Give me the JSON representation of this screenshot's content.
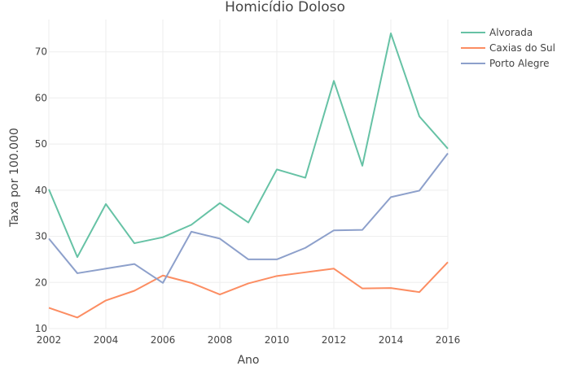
{
  "chart_data": {
    "type": "line",
    "title": "Homicídio Doloso",
    "xlabel": "Ano",
    "ylabel": "Taxa por 100.000",
    "xlim": [
      2002,
      2016
    ],
    "ylim": [
      10,
      77
    ],
    "x_ticks": [
      2002,
      2004,
      2006,
      2008,
      2010,
      2012,
      2014,
      2016
    ],
    "y_ticks": [
      10,
      20,
      30,
      40,
      50,
      60,
      70
    ],
    "grid": true,
    "legend_position": "top-right",
    "x": [
      2002,
      2003,
      2004,
      2005,
      2006,
      2007,
      2008,
      2009,
      2010,
      2011,
      2012,
      2013,
      2014,
      2015,
      2016
    ],
    "series": [
      {
        "name": "Alvorada",
        "color": "#66c2a5",
        "values": [
          40.2,
          25.5,
          37.0,
          28.5,
          29.8,
          32.5,
          37.2,
          33.0,
          44.5,
          42.7,
          63.7,
          45.3,
          74.0,
          56.0,
          49.0
        ]
      },
      {
        "name": "Caxias do Sul",
        "color": "#fc8d62",
        "values": [
          14.5,
          12.4,
          16.1,
          18.2,
          21.5,
          19.9,
          17.4,
          19.8,
          21.4,
          22.2,
          23.0,
          18.7,
          18.8,
          17.9,
          24.4
        ]
      },
      {
        "name": "Porto Alegre",
        "color": "#8da0cb",
        "values": [
          29.5,
          22.0,
          23.0,
          24.0,
          19.9,
          31.0,
          29.5,
          25.0,
          25.0,
          27.5,
          31.3,
          31.4,
          38.5,
          39.9,
          48.0
        ]
      }
    ]
  }
}
